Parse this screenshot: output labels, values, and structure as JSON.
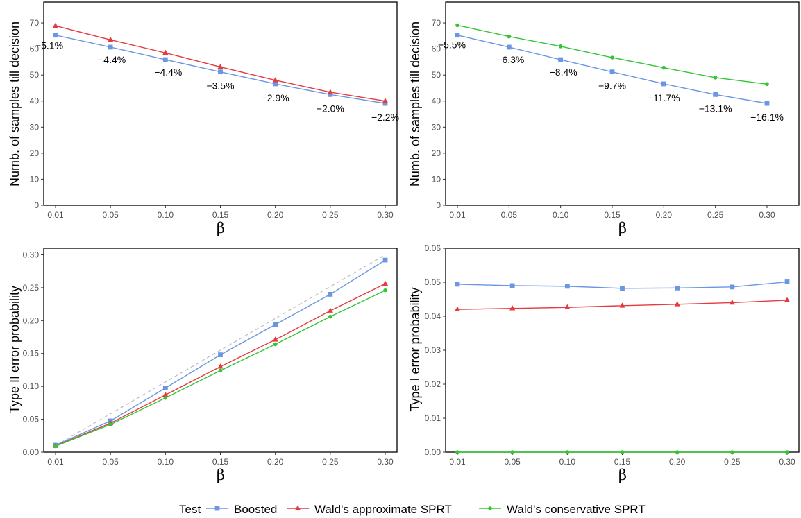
{
  "legend": {
    "title": "Test",
    "entries": [
      {
        "label": "Boosted",
        "color": "#6a96e3",
        "marker": "square"
      },
      {
        "label": "Wald's approximate SPRT",
        "color": "#e53a3f",
        "marker": "triangle"
      },
      {
        "label": "Wald's conservative SPRT",
        "color": "#33c533",
        "marker": "circle"
      }
    ]
  },
  "chart_data": [
    {
      "type": "line",
      "panel": "top-left",
      "xlabel": "β",
      "ylabel": "Numb. of samples till decision",
      "x": [
        0.01,
        0.05,
        0.1,
        0.15,
        0.2,
        0.25,
        0.3
      ],
      "x_ticks": [
        "0.01",
        "0.05",
        "0.10",
        "0.15",
        "0.20",
        "0.25",
        "0.30"
      ],
      "y_ticks": [
        "0",
        "10",
        "20",
        "30",
        "40",
        "50",
        "60",
        "70"
      ],
      "ylim": [
        0,
        78
      ],
      "series": [
        {
          "name": "Boosted",
          "color": "#6a96e3",
          "marker": "square",
          "values": [
            65.3,
            60.7,
            55.9,
            51.2,
            46.6,
            42.5,
            39.1
          ]
        },
        {
          "name": "Wald's approximate SPRT",
          "color": "#e53a3f",
          "marker": "triangle",
          "values": [
            68.9,
            63.5,
            58.5,
            53.1,
            48.0,
            43.4,
            40.0
          ]
        }
      ],
      "annotations": [
        "−5.1%",
        "−4.4%",
        "−4.4%",
        "−3.5%",
        "−2.9%",
        "−2.0%",
        "−2.2%"
      ],
      "grid": false
    },
    {
      "type": "line",
      "panel": "top-right",
      "xlabel": "β",
      "ylabel": "Numb. of samples till decision",
      "x": [
        0.01,
        0.05,
        0.1,
        0.15,
        0.2,
        0.25,
        0.3
      ],
      "x_ticks": [
        "0.01",
        "0.05",
        "0.10",
        "0.15",
        "0.20",
        "0.25",
        "0.30"
      ],
      "y_ticks": [
        "0",
        "10",
        "20",
        "30",
        "40",
        "50",
        "60",
        "70"
      ],
      "ylim": [
        0,
        78
      ],
      "series": [
        {
          "name": "Boosted",
          "color": "#6a96e3",
          "marker": "square",
          "values": [
            65.3,
            60.7,
            55.9,
            51.2,
            46.6,
            42.5,
            39.1
          ]
        },
        {
          "name": "Wald's conservative SPRT",
          "color": "#33c533",
          "marker": "circle",
          "values": [
            69.1,
            64.8,
            61.0,
            56.7,
            52.8,
            49.0,
            46.5
          ]
        }
      ],
      "annotations": [
        "−5.5%",
        "−6.3%",
        "−8.4%",
        "−9.7%",
        "−11.7%",
        "−13.1%",
        "−16.1%"
      ],
      "grid": false
    },
    {
      "type": "line",
      "panel": "bottom-left",
      "xlabel": "β",
      "ylabel": "Type II error probability",
      "x": [
        0.01,
        0.05,
        0.1,
        0.15,
        0.2,
        0.25,
        0.3
      ],
      "x_ticks": [
        "0.01",
        "0.05",
        "0.10",
        "0.15",
        "0.20",
        "0.25",
        "0.30"
      ],
      "y_ticks": [
        "0.00",
        "0.05",
        "0.10",
        "0.15",
        "0.20",
        "0.25",
        "0.30"
      ],
      "ylim": [
        0,
        0.31
      ],
      "reference_line": {
        "style": "dashed",
        "color": "#bdbdbd",
        "x": [
          0.01,
          0.3
        ],
        "y": [
          0.01,
          0.3
        ]
      },
      "series": [
        {
          "name": "Boosted",
          "color": "#6a96e3",
          "marker": "square",
          "values": [
            0.0105,
            0.0475,
            0.0975,
            0.148,
            0.194,
            0.24,
            0.292
          ]
        },
        {
          "name": "Wald's approximate SPRT",
          "color": "#e53a3f",
          "marker": "triangle",
          "values": [
            0.0095,
            0.044,
            0.087,
            0.13,
            0.171,
            0.215,
            0.256
          ]
        },
        {
          "name": "Wald's conservative SPRT",
          "color": "#33c533",
          "marker": "circle",
          "values": [
            0.009,
            0.042,
            0.0825,
            0.124,
            0.164,
            0.206,
            0.246
          ]
        }
      ],
      "grid": false
    },
    {
      "type": "line",
      "panel": "bottom-right",
      "xlabel": "β",
      "ylabel": "Type I error probability",
      "x": [
        0.01,
        0.05,
        0.1,
        0.15,
        0.2,
        0.25,
        0.3
      ],
      "x_ticks": [
        "0.01",
        "0.05",
        "0.10",
        "0.15",
        "0.20",
        "0.25",
        "0.30"
      ],
      "y_ticks": [
        "0.00",
        "0.01",
        "0.02",
        "0.03",
        "0.04",
        "0.05",
        "0.06"
      ],
      "ylim": [
        0,
        0.06
      ],
      "series": [
        {
          "name": "Boosted",
          "color": "#6a96e3",
          "marker": "square",
          "values": [
            0.0494,
            0.049,
            0.0488,
            0.0482,
            0.0483,
            0.0486,
            0.0501
          ]
        },
        {
          "name": "Wald's approximate SPRT",
          "color": "#e53a3f",
          "marker": "triangle",
          "values": [
            0.042,
            0.0423,
            0.0426,
            0.0431,
            0.0435,
            0.044,
            0.0447
          ]
        },
        {
          "name": "Wald's conservative SPRT",
          "color": "#33c533",
          "marker": "circle",
          "values": [
            0.0,
            0.0,
            0.0,
            0.0,
            0.0,
            0.0,
            0.0
          ]
        }
      ],
      "grid": false
    }
  ]
}
